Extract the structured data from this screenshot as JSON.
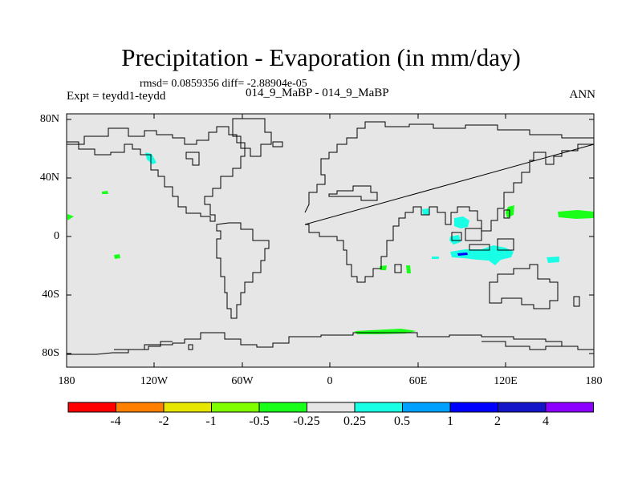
{
  "figure": {
    "title": "Precipitation - Evaporation (in mm/day)",
    "stats": "rmsd= 0.0859356 diff= -2.88904e-05",
    "subtitle": "014_9_MaBP - 014_9_MaBP",
    "experiment": "Expt = teydd1-teydd",
    "season": "ANN"
  },
  "map": {
    "background_color": "#e6e6e6",
    "coastline_color": "#000000",
    "lat_ticks": [
      "80N",
      "40N",
      "0",
      "40S",
      "80S"
    ],
    "lon_ticks": [
      "180",
      "120W",
      "60W",
      "0",
      "60E",
      "120E",
      "180"
    ]
  },
  "colorbar": {
    "colors": [
      "#ff0000",
      "#ff8000",
      "#e6e600",
      "#80ff00",
      "#19ff19",
      "#e6e6e6",
      "#19ffe6",
      "#00a0ff",
      "#0000ff",
      "#1414c8",
      "#8c00ff"
    ],
    "labels": [
      "-4",
      "-2",
      "-1",
      "-0.5",
      "-0.25",
      "0.25",
      "0.5",
      "1",
      "2",
      "4"
    ]
  },
  "anomaly_colors": {
    "green": "#19ff19",
    "cyan": "#19ffe6",
    "blue": "#0000ff"
  }
}
